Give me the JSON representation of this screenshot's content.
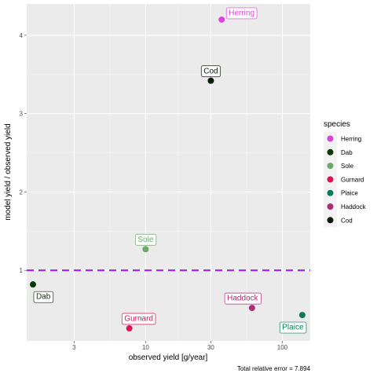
{
  "chart_data": {
    "type": "scatter",
    "xlabel": "observed yield [g/year]",
    "ylabel": "model yield / observed yield",
    "x_scale": "log10",
    "x_ticks": [
      3,
      10,
      30,
      100
    ],
    "y_ticks": [
      1,
      2,
      3,
      4
    ],
    "xlim": [
      1.35,
      160
    ],
    "ylim": [
      0.1,
      4.4
    ],
    "reference_line": {
      "y": 1,
      "style": "dashed",
      "color": "#a020f0"
    },
    "legend": {
      "title": "species",
      "position": "right"
    },
    "caption": "Total relative error = 7.894",
    "points": [
      {
        "species": "Herring",
        "x": 36,
        "y": 4.2,
        "color": "#e040e0"
      },
      {
        "species": "Dab",
        "x": 1.5,
        "y": 0.82,
        "color": "#0a3a0a"
      },
      {
        "species": "Sole",
        "x": 10,
        "y": 1.27,
        "color": "#6ea86e"
      },
      {
        "species": "Gurnard",
        "x": 7.6,
        "y": 0.26,
        "color": "#e0105a"
      },
      {
        "species": "Plaice",
        "x": 140,
        "y": 0.43,
        "color": "#0a7a5a"
      },
      {
        "species": "Haddock",
        "x": 60,
        "y": 0.52,
        "color": "#b02a78"
      },
      {
        "species": "Cod",
        "x": 30,
        "y": 3.42,
        "color": "#0a1a0a"
      }
    ]
  }
}
